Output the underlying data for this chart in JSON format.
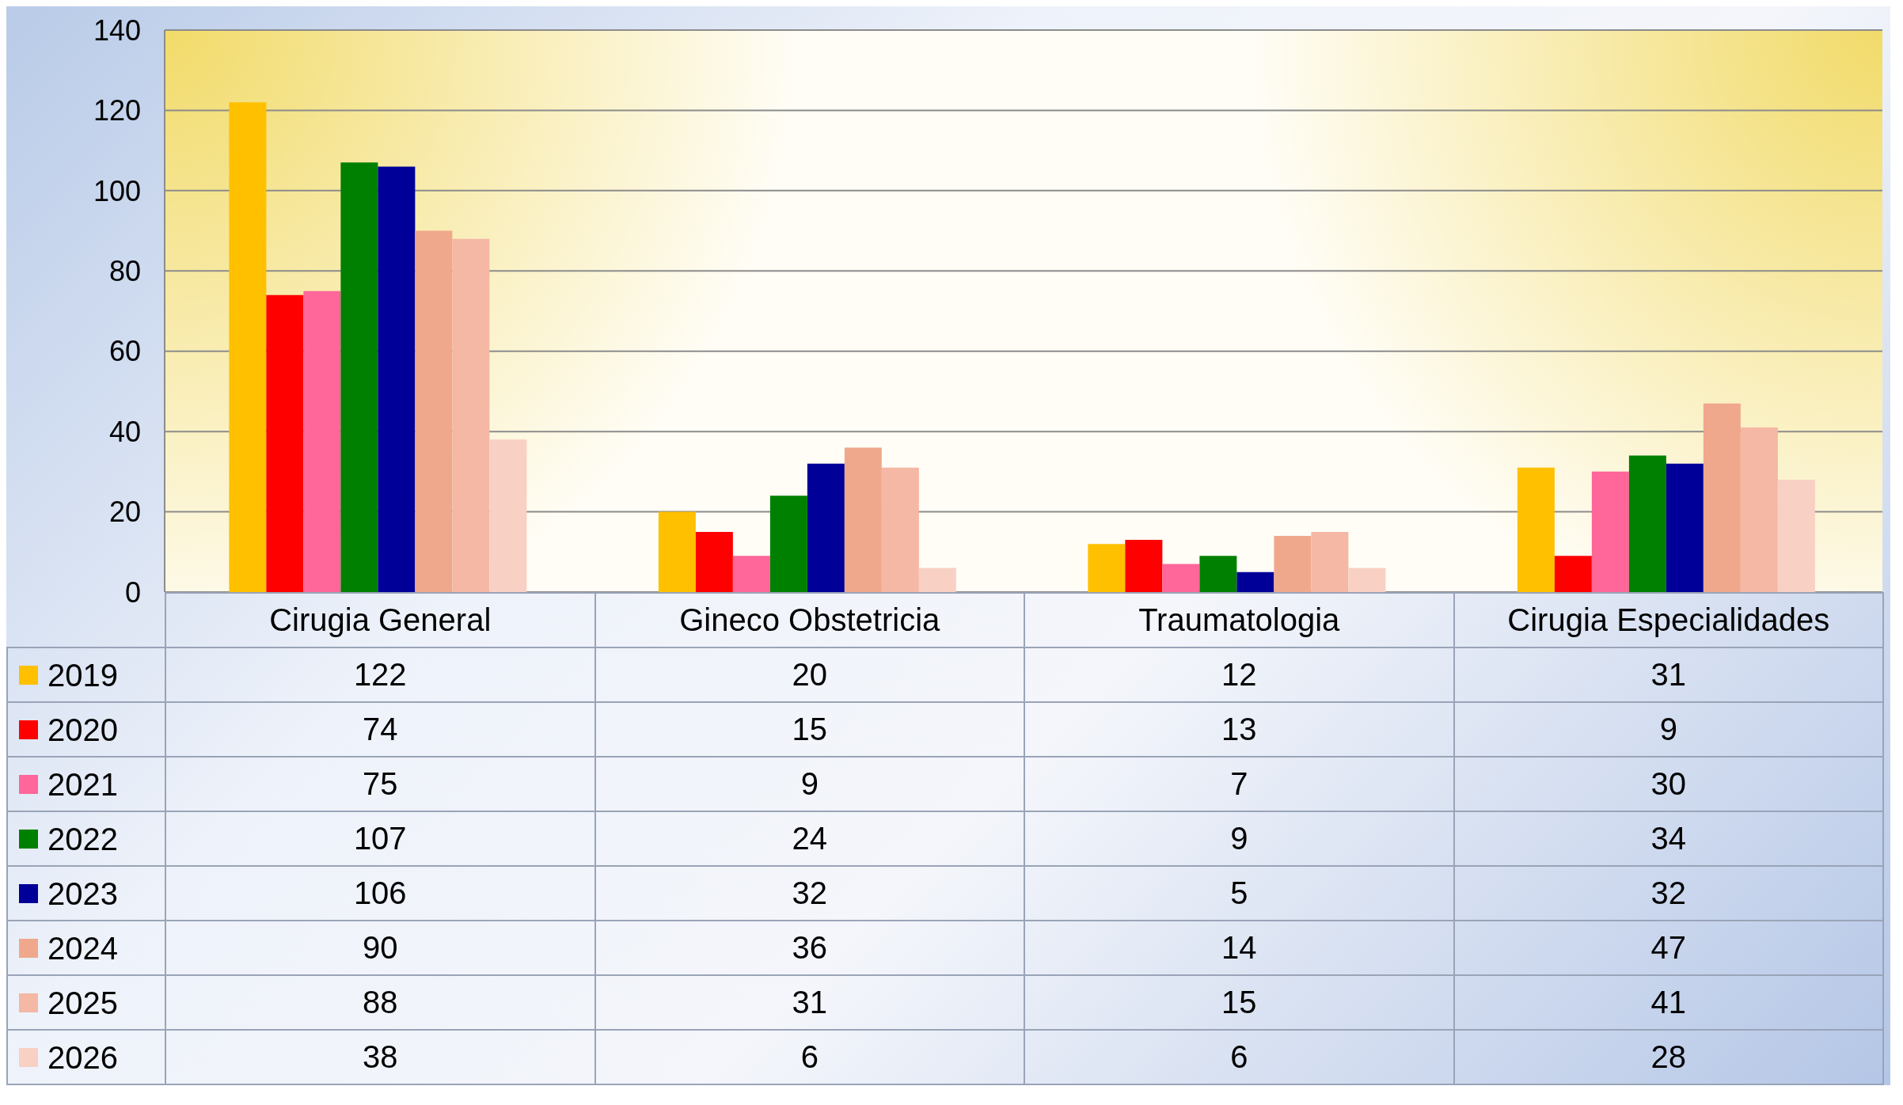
{
  "chart_data": {
    "type": "bar",
    "categories": [
      "Cirugia General",
      "Gineco Obstetricia",
      "Traumatologia",
      "Cirugia Especialidades"
    ],
    "series": [
      {
        "name": "2019",
        "color": "#ffc000",
        "values": [
          122,
          20,
          12,
          31
        ]
      },
      {
        "name": "2020",
        "color": "#ff0000",
        "values": [
          74,
          15,
          13,
          9
        ]
      },
      {
        "name": "2021",
        "color": "#ff6699",
        "values": [
          75,
          9,
          7,
          30
        ]
      },
      {
        "name": "2022",
        "color": "#008000",
        "values": [
          107,
          24,
          9,
          34
        ]
      },
      {
        "name": "2023",
        "color": "#000099",
        "values": [
          106,
          32,
          5,
          32
        ]
      },
      {
        "name": "2024",
        "color": "#f0a88c",
        "values": [
          90,
          36,
          14,
          47
        ]
      },
      {
        "name": "2025",
        "color": "#f4b8a4",
        "values": [
          88,
          31,
          15,
          41
        ]
      },
      {
        "name": "2026",
        "color": "#f8d0c4",
        "values": [
          38,
          6,
          6,
          28
        ]
      }
    ],
    "ylim": [
      0,
      140
    ],
    "yticks": [
      0,
      20,
      40,
      60,
      80,
      100,
      120,
      140
    ],
    "grid": "y",
    "legend": "bottom",
    "data_labels": true
  }
}
